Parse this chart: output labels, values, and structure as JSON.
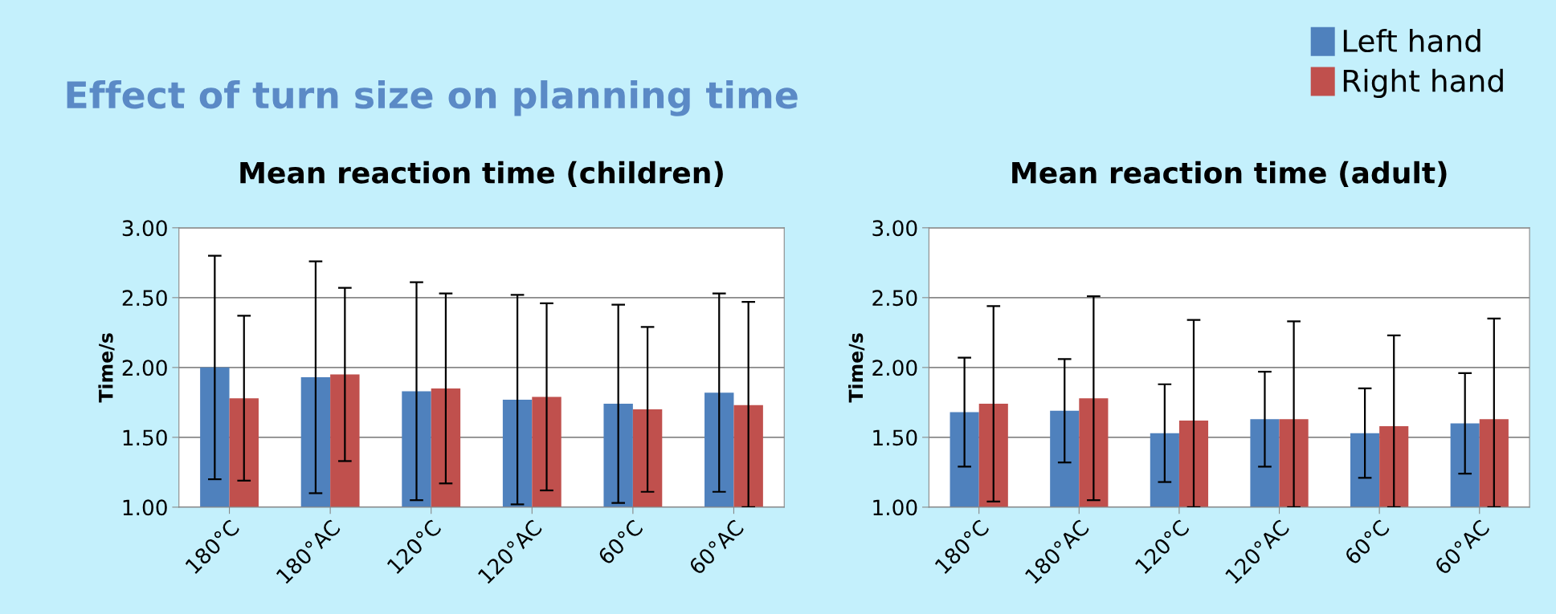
{
  "chart_data": [
    {
      "type": "bar",
      "title": "Mean reaction time (children)",
      "ylabel": "Time/s",
      "annotations": [
        "Effect of turn size on planning time"
      ],
      "categories": [
        "180°C",
        "180°AC",
        "120°C",
        "120°AC",
        "60°C",
        "60°AC"
      ],
      "series": [
        {
          "name": "Left hand",
          "color": "#4f81bd",
          "values": [
            2.0,
            1.93,
            1.83,
            1.77,
            1.74,
            1.82
          ],
          "errors": [
            0.8,
            0.83,
            0.78,
            0.75,
            0.71,
            0.71
          ]
        },
        {
          "name": "Right hand",
          "color": "#c0504d",
          "values": [
            1.78,
            1.95,
            1.85,
            1.79,
            1.7,
            1.73
          ],
          "errors": [
            0.59,
            0.62,
            0.68,
            0.67,
            0.59,
            [
              1.0,
              2.47
            ]
          ]
        }
      ],
      "ylim": [
        1.0,
        3.0
      ],
      "yticks": [
        {
          "value": 1.0,
          "label": "1.00"
        },
        {
          "value": 1.5,
          "label": "1.50"
        },
        {
          "value": 2.0,
          "label": "2.00"
        },
        {
          "value": 2.5,
          "label": "2.50"
        },
        {
          "value": 3.0,
          "label": "3.00"
        }
      ],
      "grid": "y",
      "legend": "top right"
    },
    {
      "type": "bar",
      "title": "Mean reaction time (adult)",
      "ylabel": "Time/s",
      "categories": [
        "180°C",
        "180°AC",
        "120°C",
        "120°AC",
        "60°C",
        "60°AC"
      ],
      "series": [
        {
          "color": "#4f81bd",
          "values": [
            1.68,
            1.69,
            1.53,
            1.63,
            1.53,
            1.6
          ],
          "errors": [
            0.39,
            0.37,
            0.35,
            0.34,
            0.32,
            0.36
          ]
        },
        {
          "color": "#c0504d",
          "values": [
            1.74,
            1.78,
            1.62,
            1.63,
            1.58,
            1.63
          ],
          "errors": [
            0.7,
            0.73,
            [
              1.0,
              2.34
            ],
            [
              1.0,
              2.33
            ],
            [
              1.0,
              2.23
            ],
            [
              1.0,
              2.35
            ]
          ]
        }
      ],
      "ylim": [
        1.0,
        3.0
      ],
      "yticks": [
        {
          "value": 1.0,
          "label": "1.00"
        },
        {
          "value": 1.5,
          "label": "1.50"
        },
        {
          "value": 2.0,
          "label": "2.00"
        },
        {
          "value": 2.5,
          "label": "2.50"
        },
        {
          "value": 3.0,
          "label": "3.00"
        }
      ],
      "grid": "y"
    }
  ]
}
